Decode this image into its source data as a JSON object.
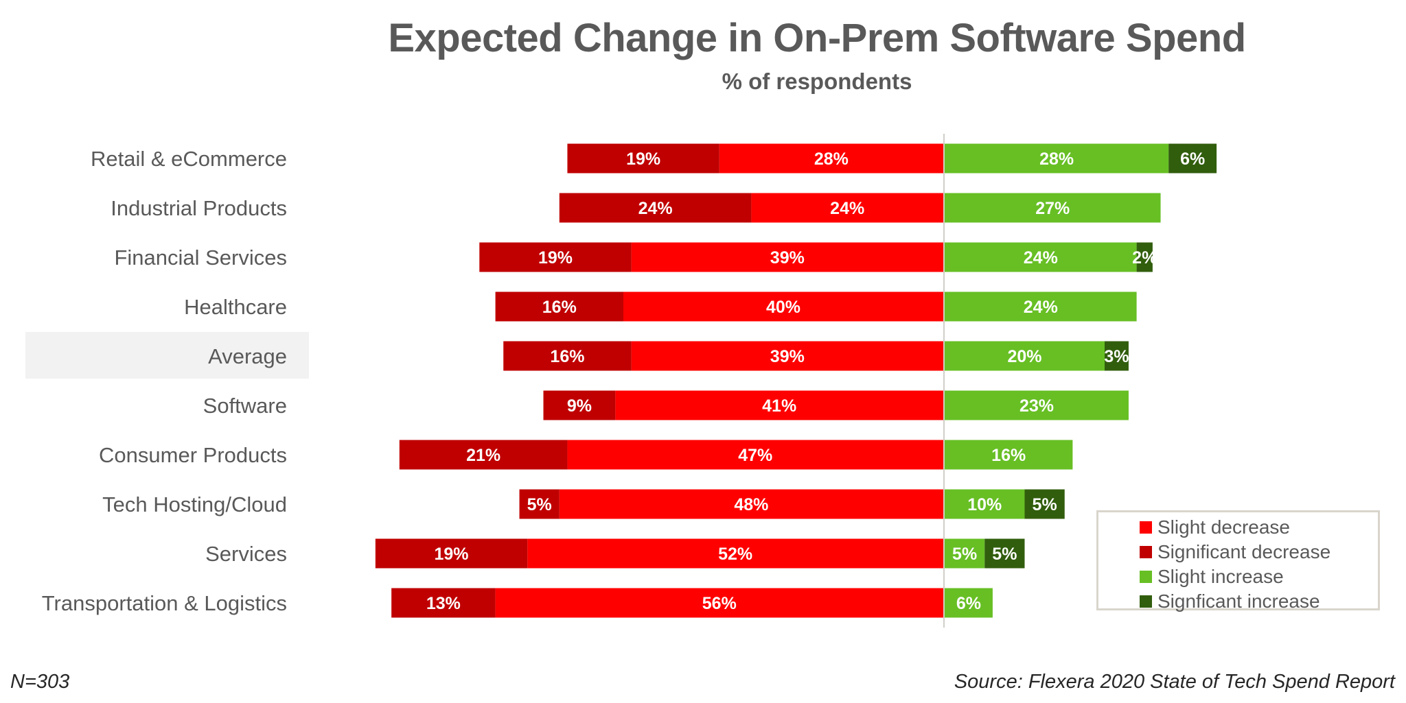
{
  "chart_data": {
    "type": "bar",
    "orientation": "horizontal-diverging-stacked",
    "title": "Expected Change in On-Prem Software Spend",
    "subtitle": "% of respondents",
    "xlabel": "",
    "ylabel": "",
    "grid": false,
    "legend_position": "bottom-right",
    "categories": [
      "Retail & eCommerce",
      "Industrial Products",
      "Financial Services",
      "Healthcare",
      "Average",
      "Software",
      "Consumer Products",
      "Tech Hosting/Cloud",
      "Services",
      "Transportation & Logistics"
    ],
    "highlight_category": "Average",
    "series": [
      {
        "name": "Slight decrease",
        "color": "#ff0000",
        "side": "negative",
        "stack_order": 1,
        "values": [
          28,
          24,
          39,
          40,
          39,
          41,
          47,
          48,
          52,
          56
        ]
      },
      {
        "name": "Significant decrease",
        "color": "#c00000",
        "side": "negative",
        "stack_order": 2,
        "values": [
          19,
          24,
          19,
          16,
          16,
          9,
          21,
          5,
          19,
          13
        ]
      },
      {
        "name": "Slight increase",
        "color": "#67bf24",
        "side": "positive",
        "stack_order": 1,
        "values": [
          28,
          27,
          24,
          24,
          20,
          23,
          16,
          10,
          5,
          6
        ]
      },
      {
        "name": "Signficant increase",
        "color": "#315e0d",
        "side": "positive",
        "stack_order": 2,
        "values": [
          6,
          0,
          2,
          0,
          3,
          0,
          0,
          5,
          5,
          0
        ]
      }
    ],
    "legend": [
      "Slight decrease",
      "Significant decrease",
      "Slight increase",
      "Signficant increase"
    ],
    "value_suffix": "%"
  },
  "footer": {
    "sample_size": "N=303",
    "source": "Source: Flexera 2020 State of Tech Spend Report"
  },
  "colors": {
    "text": "#595959",
    "axis": "#d0cec8",
    "highlight_bg": "#f2f2f2"
  }
}
